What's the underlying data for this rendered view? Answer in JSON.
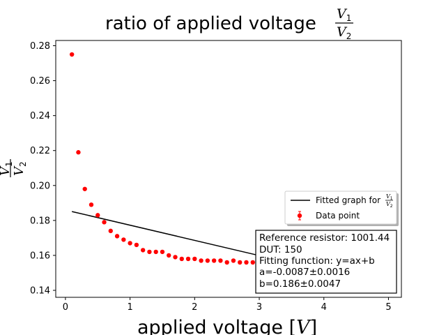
{
  "chart_data": {
    "type": "scatter",
    "title": {
      "prefix": "ratio of applied voltage",
      "numerator": "V",
      "numerator_sub": "1",
      "denominator": "V",
      "denominator_sub": "2"
    },
    "xlabel": {
      "prefix": "applied voltage [",
      "var": "V",
      "suffix": "]"
    },
    "ylabel": {
      "numerator": "V",
      "numerator_sub": "1",
      "denominator": "V",
      "denominator_sub": "2"
    },
    "xlim": [
      -0.15,
      5.2
    ],
    "ylim": [
      0.136,
      0.283
    ],
    "x_ticks": [
      0,
      1,
      2,
      3,
      4,
      5
    ],
    "y_ticks": [
      0.14,
      0.16,
      0.18,
      0.2,
      0.22,
      0.24,
      0.26,
      0.28
    ],
    "y_tick_labels": [
      "0.14",
      "0.16",
      "0.18",
      "0.20",
      "0.22",
      "0.24",
      "0.26",
      "0.28"
    ],
    "series": [
      {
        "name": "Data point",
        "kind": "points",
        "color": "#ff0000",
        "x": [
          0.1,
          0.2,
          0.3,
          0.4,
          0.5,
          0.6,
          0.7,
          0.8,
          0.9,
          1.0,
          1.1,
          1.2,
          1.3,
          1.4,
          1.5,
          1.6,
          1.7,
          1.8,
          1.9,
          2.0,
          2.1,
          2.2,
          2.3,
          2.4,
          2.5,
          2.6,
          2.7,
          2.8,
          2.9
        ],
        "y": [
          0.275,
          0.219,
          0.198,
          0.189,
          0.183,
          0.179,
          0.174,
          0.171,
          0.169,
          0.167,
          0.166,
          0.163,
          0.162,
          0.162,
          0.162,
          0.16,
          0.159,
          0.158,
          0.158,
          0.158,
          0.157,
          0.157,
          0.157,
          0.157,
          0.156,
          0.157,
          0.156,
          0.156,
          0.156
        ]
      },
      {
        "name": "Fitted graph for",
        "kind": "line",
        "color": "#000000",
        "x": [
          0.1,
          3.0
        ],
        "y": [
          0.1851,
          0.1599
        ]
      }
    ],
    "legend": {
      "placement": "right",
      "fit_label": "Fitted graph for",
      "fit_frac": {
        "numerator": "V",
        "numerator_sub": "1",
        "denominator": "V",
        "denominator_sub": "2"
      },
      "data_label": "Data point"
    },
    "annotation": {
      "lines": [
        "Reference resistor: 1001.44",
        "DUT: 150",
        "Fitting function: y=ax+b",
        "a=-0.0087±0.0016",
        "b=0.186±0.0047"
      ]
    },
    "grid": false
  }
}
